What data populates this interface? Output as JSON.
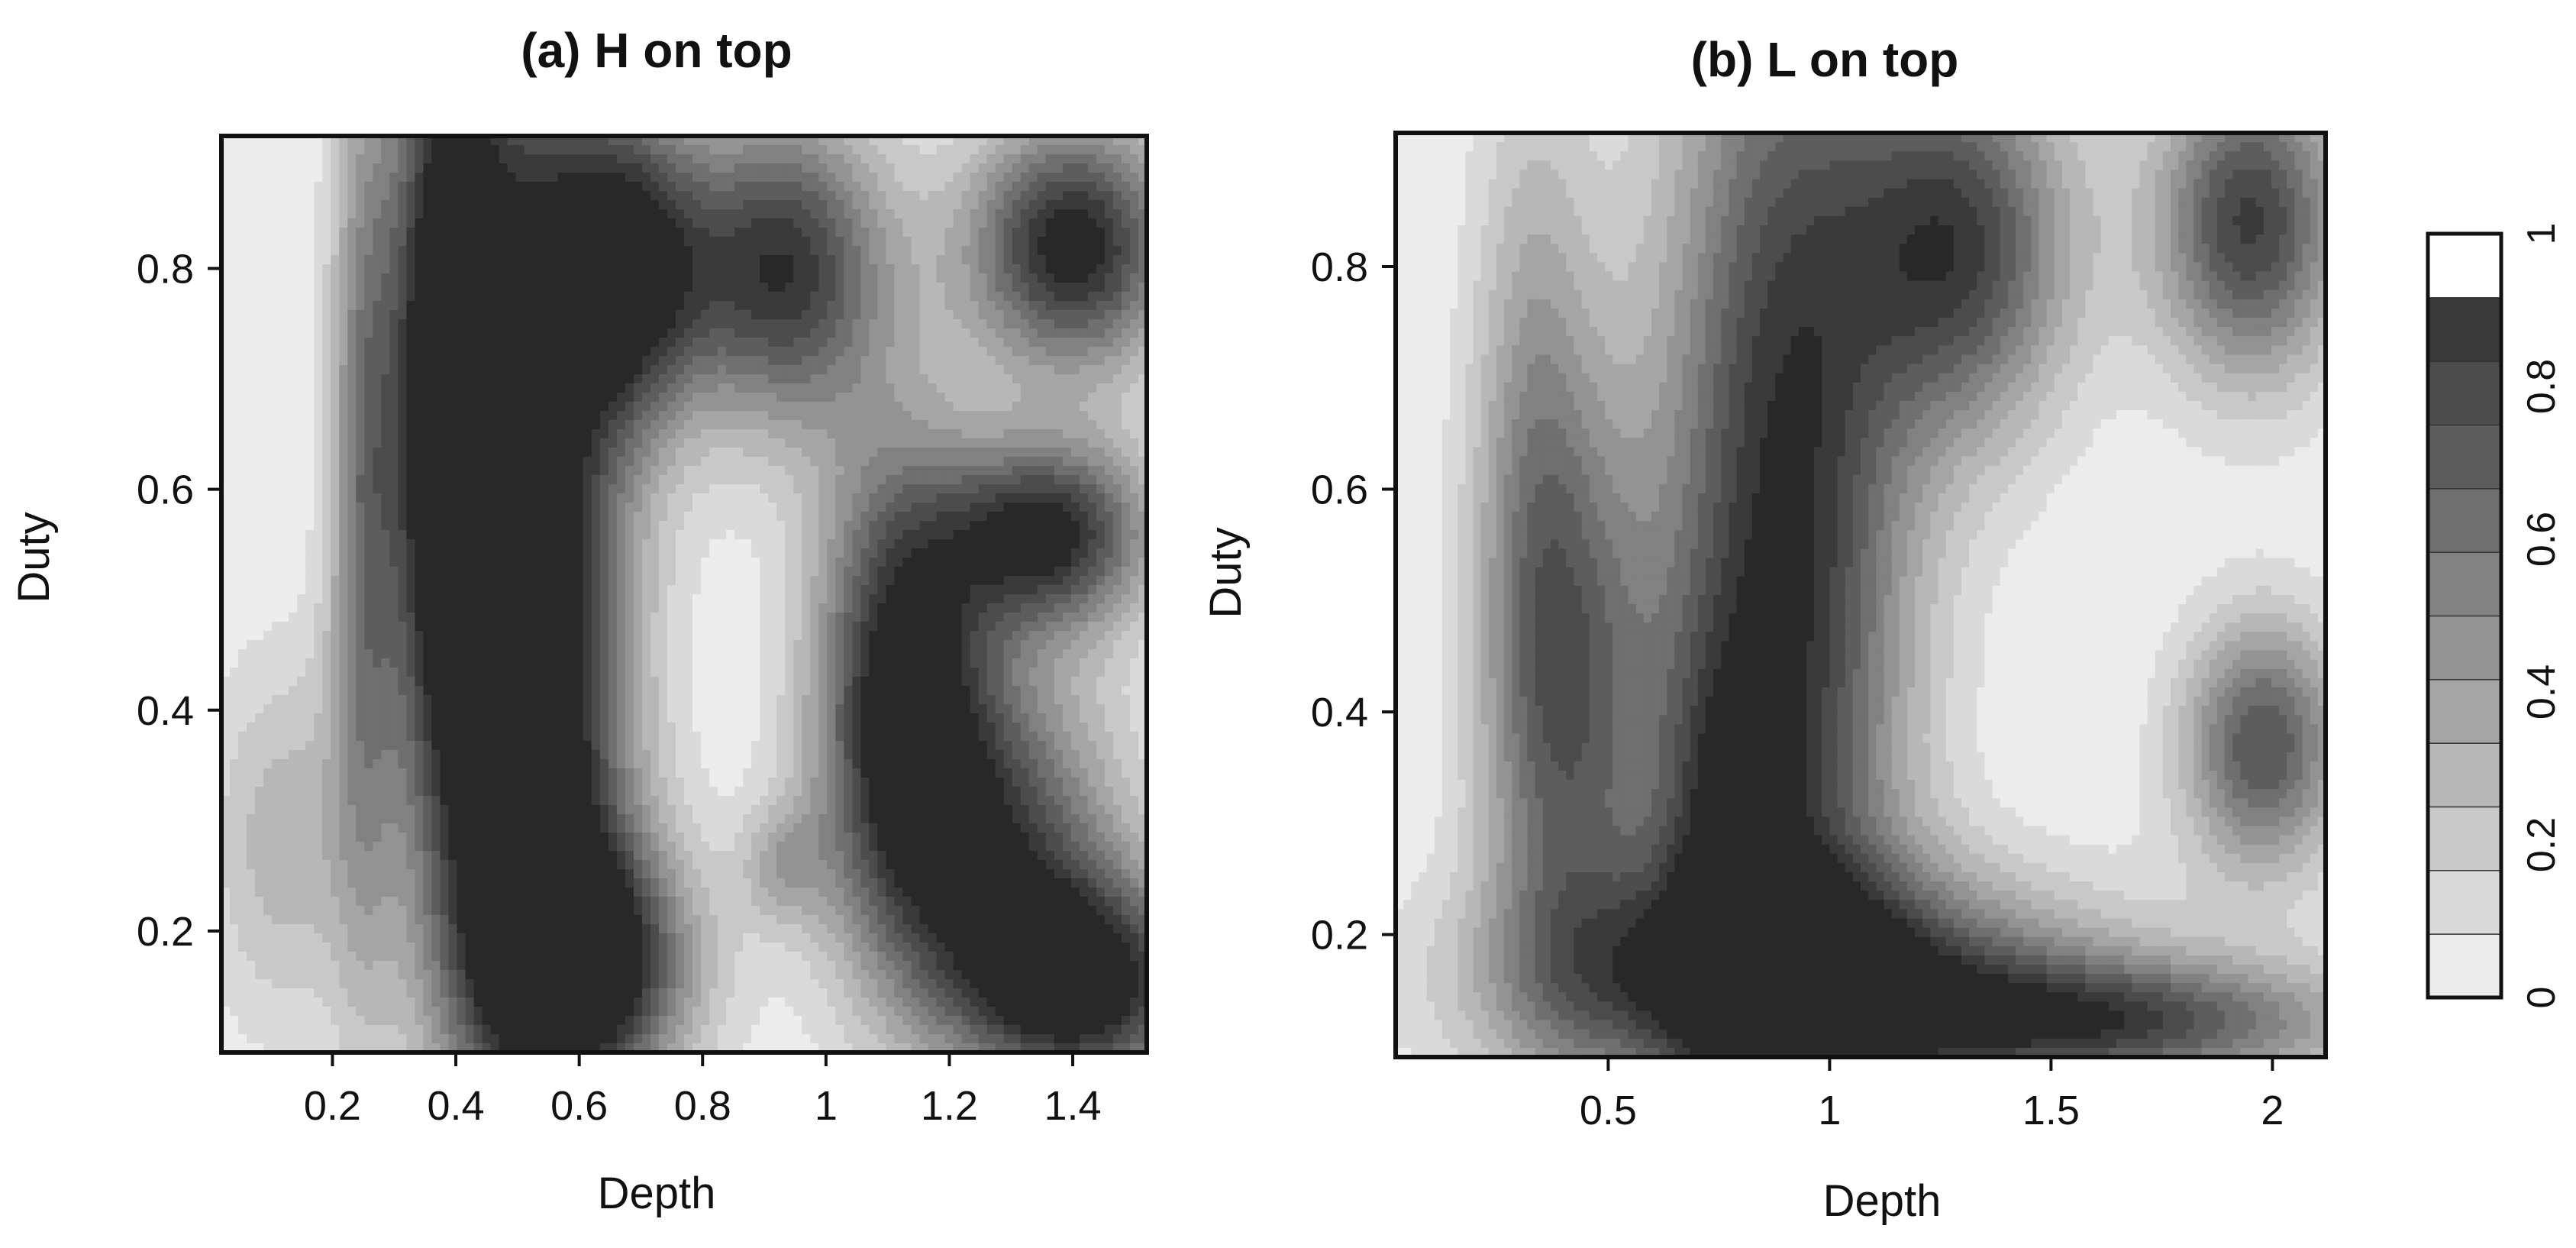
{
  "chart_data": [
    {
      "type": "heatmap",
      "title": "(a) H on top",
      "xlabel": "Depth",
      "ylabel": "Duty",
      "xlim": [
        0.02,
        1.52
      ],
      "ylim": [
        0.09,
        0.92
      ],
      "xticks": [
        0.2,
        0.4,
        0.6,
        0.8,
        1,
        1.2,
        1.4
      ],
      "xtick_labels": [
        "0.2",
        "0.4",
        "0.6",
        "0.8",
        "1",
        "1.2",
        "1.4"
      ],
      "yticks": [
        0.2,
        0.4,
        0.6,
        0.8
      ],
      "ytick_labels": [
        "0.2",
        "0.4",
        "0.6",
        "0.8"
      ],
      "grid": false,
      "features": [
        {
          "x": 0.52,
          "y": 0.32,
          "sx": 0.11,
          "sy": 0.22,
          "a": 0.6
        },
        {
          "x": 0.5,
          "y": 0.62,
          "sx": 0.12,
          "sy": 0.35,
          "a": 0.95
        },
        {
          "x": 0.38,
          "y": 0.72,
          "sx": 0.06,
          "sy": 0.25,
          "a": 0.8
        },
        {
          "x": 0.68,
          "y": 0.8,
          "sx": 0.09,
          "sy": 0.1,
          "a": 0.85
        },
        {
          "x": 0.93,
          "y": 0.8,
          "sx": 0.12,
          "sy": 0.1,
          "a": 0.9
        },
        {
          "x": 1.4,
          "y": 0.82,
          "sx": 0.12,
          "sy": 0.08,
          "a": 1.0
        },
        {
          "x": 0.62,
          "y": 0.17,
          "sx": 0.12,
          "sy": 0.08,
          "a": 0.9
        },
        {
          "x": 1.28,
          "y": 0.28,
          "sx": 0.14,
          "sy": 0.12,
          "a": 0.75
        },
        {
          "x": 1.12,
          "y": 0.42,
          "sx": 0.1,
          "sy": 0.16,
          "a": 0.95
        },
        {
          "x": 1.36,
          "y": 0.56,
          "sx": 0.12,
          "sy": 0.06,
          "a": 0.95
        },
        {
          "x": 1.42,
          "y": 0.15,
          "sx": 0.14,
          "sy": 0.07,
          "a": 0.95
        },
        {
          "x": 0.93,
          "y": 0.26,
          "sx": 0.05,
          "sy": 0.04,
          "a": 0.3
        },
        {
          "x": 0.12,
          "y": 0.28,
          "sx": 0.09,
          "sy": 0.12,
          "a": 0.3
        },
        {
          "x": 0.25,
          "y": 0.6,
          "sx": 0.04,
          "sy": 0.3,
          "a": 0.5
        }
      ]
    },
    {
      "type": "heatmap",
      "title": "(b) L on top",
      "xlabel": "Depth",
      "ylabel": "Duty",
      "xlim": [
        0.02,
        2.12
      ],
      "ylim": [
        0.09,
        0.92
      ],
      "xticks": [
        0.5,
        1,
        1.5,
        2
      ],
      "xtick_labels": [
        "0.5",
        "1",
        "1.5",
        "2"
      ],
      "yticks": [
        0.2,
        0.4,
        0.6,
        0.8
      ],
      "ytick_labels": [
        "0.2",
        "0.4",
        "0.6",
        "0.8"
      ],
      "grid": false,
      "colorbar": {
        "min": 0,
        "max": 1,
        "ticks": [
          0,
          0.2,
          0.4,
          0.6,
          0.8,
          1
        ],
        "tick_labels": [
          "0",
          "0.2",
          "0.4",
          "0.6",
          "0.8",
          "1"
        ],
        "levels": 12
      },
      "features": [
        {
          "x": 0.42,
          "y": 0.4,
          "sx": 0.14,
          "sy": 0.2,
          "a": 0.6
        },
        {
          "x": 0.33,
          "y": 0.65,
          "sx": 0.1,
          "sy": 0.25,
          "a": 0.35
        },
        {
          "x": 0.9,
          "y": 0.55,
          "sx": 0.2,
          "sy": 0.4,
          "a": 0.95
        },
        {
          "x": 0.95,
          "y": 0.16,
          "sx": 0.45,
          "sy": 0.07,
          "a": 0.9
        },
        {
          "x": 1.65,
          "y": 0.12,
          "sx": 0.4,
          "sy": 0.04,
          "a": 0.7
        },
        {
          "x": 1.3,
          "y": 0.82,
          "sx": 0.18,
          "sy": 0.12,
          "a": 0.8
        },
        {
          "x": 1.95,
          "y": 0.84,
          "sx": 0.15,
          "sy": 0.1,
          "a": 0.85
        },
        {
          "x": 1.98,
          "y": 0.37,
          "sx": 0.13,
          "sy": 0.08,
          "a": 0.75
        },
        {
          "x": 0.76,
          "y": 0.3,
          "sx": 0.1,
          "sy": 0.12,
          "a": 0.4
        }
      ]
    }
  ]
}
